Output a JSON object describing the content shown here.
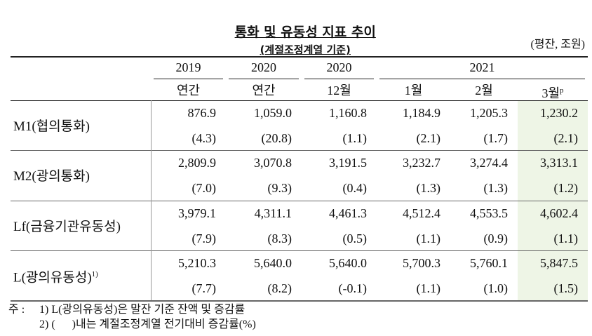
{
  "header": {
    "title": "통화 및 유동성 지표 추이",
    "subtitle": "(계절조정계열 기준)",
    "unit": "(평잔, 조원)"
  },
  "table": {
    "year_row": [
      "2019",
      "2020",
      "2020",
      "2021"
    ],
    "period_row": [
      "연간",
      "연간",
      "12월",
      "1월",
      "2월",
      "3월"
    ],
    "period_note": "p",
    "rows": [
      {
        "label": "M1(협의통화)",
        "values": [
          "876.9",
          "1,059.0",
          "1,160.8",
          "1,184.9",
          "1,205.3",
          "1,230.2"
        ],
        "changes": [
          "(4.3)",
          "(20.8)",
          "(1.1)",
          "(2.1)",
          "(1.7)",
          "(2.1)"
        ]
      },
      {
        "label": "M2(광의통화)",
        "values": [
          "2,809.9",
          "3,070.8",
          "3,191.5",
          "3,232.7",
          "3,274.4",
          "3,313.1"
        ],
        "changes": [
          "(7.0)",
          "(9.3)",
          "(0.4)",
          "(1.3)",
          "(1.3)",
          "(1.2)"
        ]
      },
      {
        "label": "Lf(금융기관유동성)",
        "values": [
          "3,979.1",
          "4,311.1",
          "4,461.3",
          "4,512.4",
          "4,553.5",
          "4,602.4"
        ],
        "changes": [
          "(7.9)",
          "(8.3)",
          "(0.5)",
          "(1.1)",
          "(0.9)",
          "(1.1)"
        ]
      },
      {
        "label": "L(광의유동성)",
        "label_note": "1)",
        "values": [
          "5,210.3",
          "5,640.0",
          "5,640.0",
          "5,700.3",
          "5,760.1",
          "5,847.5"
        ],
        "changes": [
          "(7.7)",
          "(8.2)",
          "(-0.1)",
          "(1.1)",
          "(1.0)",
          "(1.5)"
        ]
      }
    ]
  },
  "notes": {
    "prefix": "주 :",
    "items": [
      "1) L(광의유동성)은 말잔 기준 잔액 및 증감률",
      "2) (      )내는 계절조정계열 전기대비 증감률(%)"
    ]
  }
}
